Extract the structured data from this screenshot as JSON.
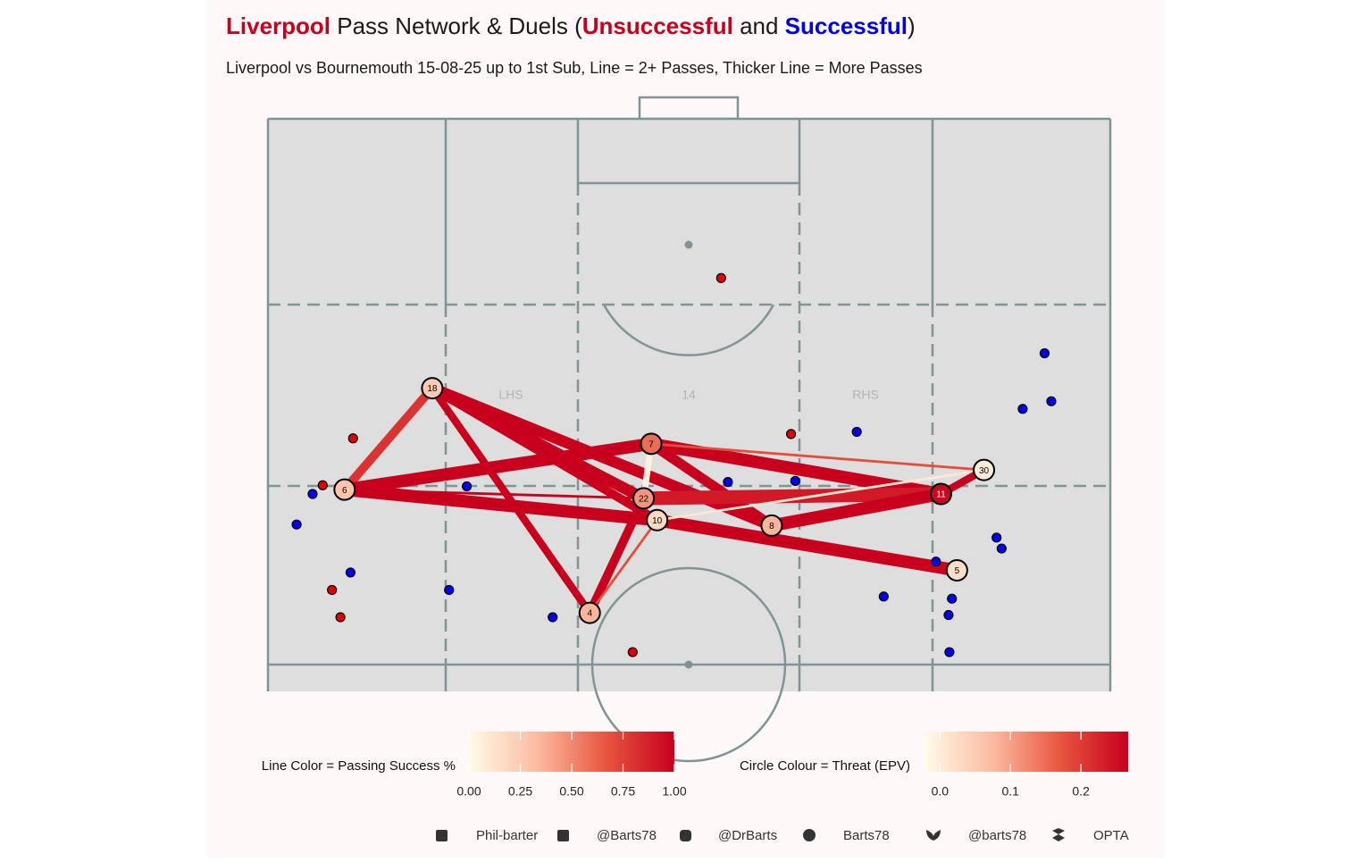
{
  "chart_data": {
    "type": "pass-network",
    "title": [
      {
        "text": "Liverpool",
        "color": "#c8001e",
        "bold": true
      },
      {
        "text": " Pass Network & Duels (",
        "color": "#1a1a1a",
        "bold": false
      },
      {
        "text": "Unsuccessful",
        "color": "#c8001e",
        "bold": true
      },
      {
        "text": " and ",
        "color": "#1a1a1a",
        "bold": false
      },
      {
        "text": "Successful",
        "color": "#0000ee",
        "bold": true
      },
      {
        "text": ")",
        "color": "#1a1a1a",
        "bold": false
      }
    ],
    "subtitle": "Liverpool vs Bournemouth 15-08-25 up to 1st Sub, Line = 2+ Passes, Thicker Line = More Passes",
    "zone_labels": [
      "LHS",
      "14",
      "RHS"
    ],
    "xlim": [
      0,
      100
    ],
    "ylim": [
      47.5,
      100
    ],
    "colors": [
      "#fffbe8",
      "#fcbba1",
      "#e8553f",
      "#c8001e"
    ],
    "nodes": [
      {
        "label": "18",
        "x": 19.5,
        "y": 75.3,
        "epv": 0.05
      },
      {
        "label": "6",
        "x": 9.1,
        "y": 66.0,
        "epv": 0.06
      },
      {
        "label": "7",
        "x": 45.5,
        "y": 70.2,
        "epv": 0.15
      },
      {
        "label": "22",
        "x": 44.6,
        "y": 65.2,
        "epv": 0.11
      },
      {
        "label": "10",
        "x": 46.2,
        "y": 63.2,
        "epv": 0.03
      },
      {
        "label": "8",
        "x": 59.8,
        "y": 62.7,
        "epv": 0.08
      },
      {
        "label": "4",
        "x": 38.2,
        "y": 54.7,
        "epv": 0.08
      },
      {
        "label": "11",
        "x": 79.9,
        "y": 65.6,
        "epv": 0.26
      },
      {
        "label": "30",
        "x": 85.0,
        "y": 67.8,
        "epv": 0.0
      },
      {
        "label": "5",
        "x": 81.8,
        "y": 58.6,
        "epv": 0.02
      }
    ],
    "edges": [
      {
        "from": "18",
        "to": "6",
        "passes": 7,
        "success": 0.8
      },
      {
        "from": "18",
        "to": "4",
        "passes": 6,
        "success": 1.0
      },
      {
        "from": "18",
        "to": "22",
        "passes": 9,
        "success": 1.0
      },
      {
        "from": "18",
        "to": "8",
        "passes": 9,
        "success": 1.0
      },
      {
        "from": "18",
        "to": "10",
        "passes": 7,
        "success": 1.0
      },
      {
        "from": "6",
        "to": "7",
        "passes": 10,
        "success": 1.0
      },
      {
        "from": "6",
        "to": "22",
        "passes": 2,
        "success": 1.0
      },
      {
        "from": "6",
        "to": "10",
        "passes": 10,
        "success": 1.0
      },
      {
        "from": "7",
        "to": "11",
        "passes": 10,
        "success": 1.0
      },
      {
        "from": "7",
        "to": "8",
        "passes": 8,
        "success": 1.0
      },
      {
        "from": "7",
        "to": "22",
        "passes": 5,
        "success": 0.05
      },
      {
        "from": "7",
        "to": "30",
        "passes": 2,
        "success": 0.7
      },
      {
        "from": "22",
        "to": "11",
        "passes": 11,
        "success": 0.9
      },
      {
        "from": "10",
        "to": "5",
        "passes": 10,
        "success": 1.0
      },
      {
        "from": "8",
        "to": "11",
        "passes": 10,
        "success": 1.0
      },
      {
        "from": "4",
        "to": "22",
        "passes": 7,
        "success": 1.0
      },
      {
        "from": "4",
        "to": "10",
        "passes": 2,
        "success": 0.7
      },
      {
        "from": "10",
        "to": "30",
        "passes": 2,
        "success": 0.1
      },
      {
        "from": "11",
        "to": "30",
        "passes": 6,
        "success": 1.0
      }
    ],
    "duels": {
      "unsuccessful": {
        "color": "#e00000",
        "x": [
          53.8,
          10.1,
          6.5,
          7.6,
          8.6,
          43.3,
          62.1
        ],
        "y": [
          85.4,
          70.7,
          66.4,
          56.8,
          54.3,
          51.1,
          71.1
        ]
      },
      "successful": {
        "color": "#0000ee",
        "x": [
          92.2,
          93.0,
          89.6,
          69.9,
          5.3,
          3.4,
          9.8,
          21.5,
          33.8,
          23.6,
          54.6,
          62.6,
          86.5,
          87.1,
          79.3,
          73.1,
          81.2,
          80.8,
          80.9
        ],
        "y": [
          78.5,
          74.1,
          73.4,
          71.3,
          65.6,
          62.8,
          58.4,
          56.8,
          54.3,
          66.3,
          66.7,
          66.8,
          61.6,
          60.6,
          59.4,
          56.2,
          56.0,
          54.5,
          51.1
        ]
      }
    },
    "line_legend": {
      "title": "Line Color = Passing Success %",
      "lim": [
        0,
        1
      ],
      "ticks": [
        {
          "value": 0,
          "label": "0.00"
        },
        {
          "value": 0.25,
          "label": "0.25"
        },
        {
          "value": 0.5,
          "label": "0.50"
        },
        {
          "value": 0.75,
          "label": "0.75"
        },
        {
          "value": 1,
          "label": "1.00"
        }
      ]
    },
    "circle_legend": {
      "title": "Circle Colour = Threat (EPV)",
      "lim": [
        -0.022,
        0.267
      ],
      "ticks": [
        {
          "value": 0,
          "label": "0.0"
        },
        0.1,
        0.2
      ]
    },
    "footer": [
      "Phil-barter",
      "@Barts78",
      "@DrBarts",
      "Barts78",
      "@barts78",
      "OPTA"
    ]
  }
}
